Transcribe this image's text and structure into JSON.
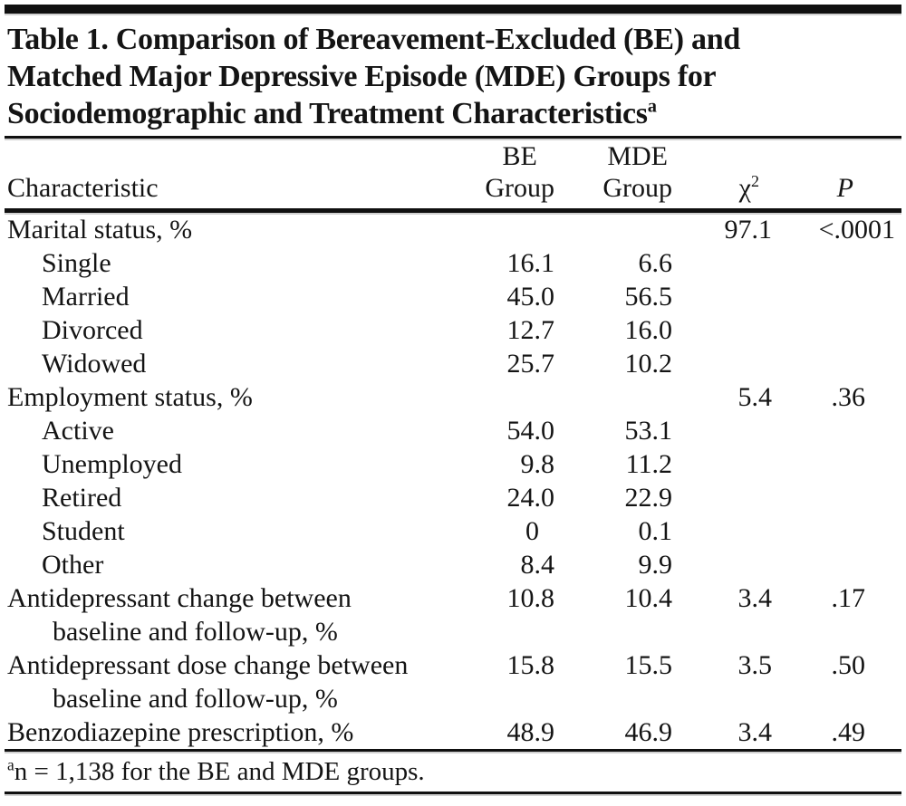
{
  "page": {
    "background": "#ffffff",
    "text_color": "#141414",
    "rule_color": "#101010"
  },
  "title": {
    "line1": "Table 1. Comparison of Bereavement-Excluded (BE) and",
    "line2": "Matched Major Depressive Episode (MDE) Groups for",
    "line3": "Sociodemographic and Treatment Characteristics",
    "superscript": "a"
  },
  "table": {
    "header": {
      "characteristic": "Characteristic",
      "be": {
        "line1": "BE",
        "line2": "Group"
      },
      "mde": {
        "line1": "MDE",
        "line2": "Group"
      },
      "chi2": {
        "base": "χ",
        "sup": "2"
      },
      "p": "P"
    },
    "rows": [
      {
        "label": "Marital status, %",
        "indent": false,
        "be": "",
        "mde": "",
        "chi2": "97.1",
        "p": "<.0001"
      },
      {
        "label": "Single",
        "indent": true,
        "be": "16.1",
        "mde": "6.6",
        "chi2": "",
        "p": ""
      },
      {
        "label": "Married",
        "indent": true,
        "be": "45.0",
        "mde": "56.5",
        "chi2": "",
        "p": ""
      },
      {
        "label": "Divorced",
        "indent": true,
        "be": "12.7",
        "mde": "16.0",
        "chi2": "",
        "p": ""
      },
      {
        "label": "Widowed",
        "indent": true,
        "be": "25.7",
        "mde": "10.2",
        "chi2": "",
        "p": ""
      },
      {
        "label": "Employment status, %",
        "indent": false,
        "be": "",
        "mde": "",
        "chi2": "5.4",
        "p": ".36"
      },
      {
        "label": "Active",
        "indent": true,
        "be": "54.0",
        "mde": "53.1",
        "chi2": "",
        "p": ""
      },
      {
        "label": "Unemployed",
        "indent": true,
        "be": "9.8",
        "mde": "11.2",
        "chi2": "",
        "p": ""
      },
      {
        "label": "Retired",
        "indent": true,
        "be": "24.0",
        "mde": "22.9",
        "chi2": "",
        "p": ""
      },
      {
        "label": "Student",
        "indent": true,
        "be": "0",
        "mde": "0.1",
        "chi2": "",
        "p": ""
      },
      {
        "label": "Other",
        "indent": true,
        "be": "8.4",
        "mde": "9.9",
        "chi2": "",
        "p": ""
      },
      {
        "label": "Antidepressant change between",
        "label_cont": "baseline and follow-up, %",
        "indent": false,
        "be": "10.8",
        "mde": "10.4",
        "chi2": "3.4",
        "p": ".17"
      },
      {
        "label": "Antidepressant dose change between",
        "label_cont": "baseline and follow-up, %",
        "indent": false,
        "be": "15.8",
        "mde": "15.5",
        "chi2": "3.5",
        "p": ".50"
      },
      {
        "label": "Benzodiazepine prescription, %",
        "indent": false,
        "be": "48.9",
        "mde": "46.9",
        "chi2": "3.4",
        "p": ".49"
      }
    ],
    "footnote": {
      "sup": "a",
      "text": "n = 1,138 for the BE and MDE groups."
    }
  }
}
